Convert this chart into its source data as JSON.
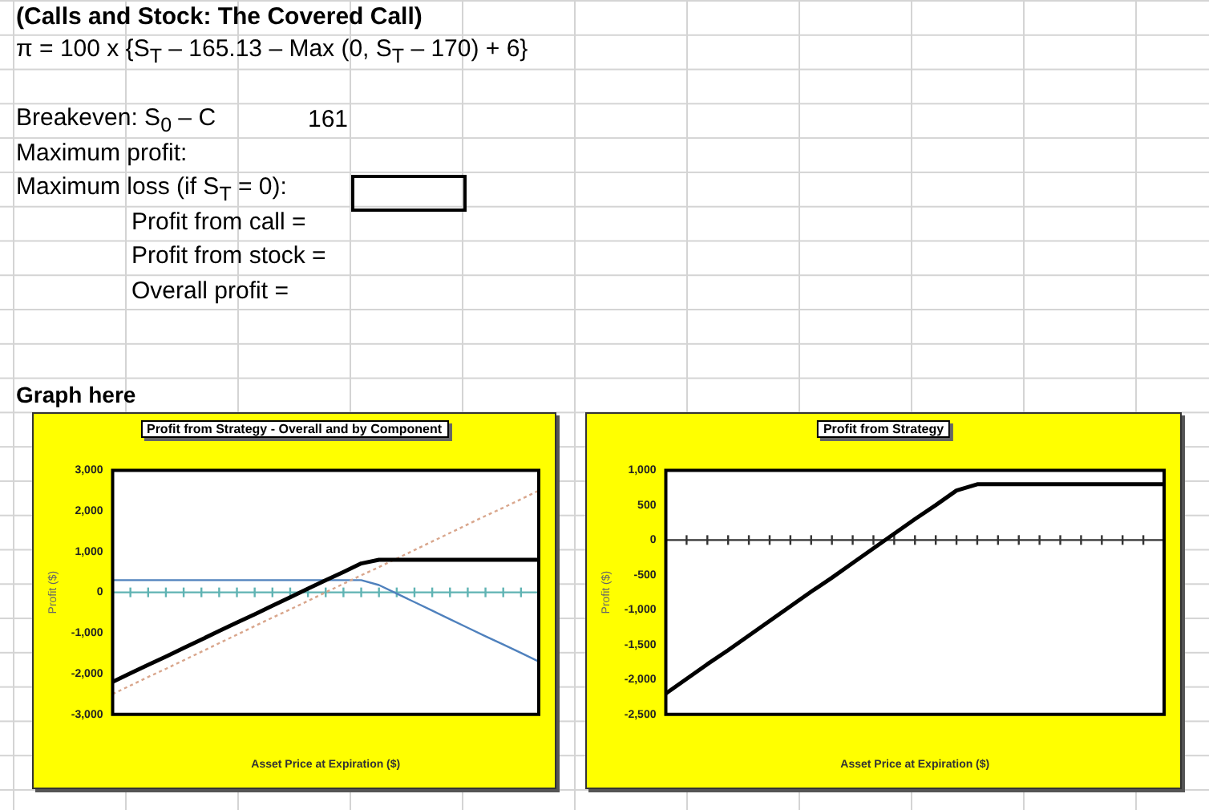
{
  "chart_data": [
    {
      "type": "other",
      "title": "(Calls and Stock: The Covered Call)",
      "annotations": [
        "π = 100 x {S$_{T}$ – 165.13 – Max (0, S$_{T}$ – 170) + 6}",
        "Breakeven: S$_{0}$ – C",
        "161",
        "Maximum profit:",
        "Maximum loss (if S$_{T}$ = 0):",
        "Profit from call =",
        "Profit from stock =",
        "Overall profit =",
        "Graph here"
      ]
    },
    {
      "type": "line",
      "title": "Profit from Strategy - Overall and by Component",
      "xlabel": "Asset Price at Expiration ($)",
      "ylabel": "Profit ($)",
      "categories": [
        null,
        null,
        null,
        null,
        null,
        null,
        null,
        null,
        null,
        null,
        null,
        null,
        null,
        null,
        null,
        null,
        null,
        null,
        null,
        null,
        null,
        null,
        null,
        null,
        null
      ],
      "series": [
        {
          "color": "#000000",
          "line_style": "solid",
          "values": [
            -2200,
            -1990,
            -1780,
            -1580,
            -1370,
            -1160,
            -950,
            -740,
            -540,
            -330,
            -120,
            90,
            300,
            500,
            710,
            800,
            800,
            800,
            800,
            800,
            800,
            800,
            800,
            800,
            800
          ]
        },
        {
          "color": "#d9a68c",
          "line_style": "dotted",
          "values": [
            -2500,
            -2290,
            -2080,
            -1880,
            -1670,
            -1460,
            -1250,
            -1040,
            -830,
            -620,
            -420,
            -210,
            0,
            210,
            420,
            620,
            830,
            1040,
            1250,
            1460,
            1670,
            1880,
            2080,
            2290,
            2500
          ]
        },
        {
          "color": "#4f81bd",
          "line_style": "solid",
          "values": [
            300,
            300,
            300,
            300,
            300,
            300,
            300,
            300,
            300,
            300,
            300,
            300,
            300,
            300,
            300,
            180,
            -30,
            -240,
            -450,
            -660,
            -870,
            -1080,
            -1280,
            -1490,
            -1700
          ]
        }
      ],
      "ylim": [
        -3000,
        3000
      ],
      "yticks": [
        {
          "value": -3000,
          "label": "-3,000"
        },
        {
          "value": -2000,
          "label": "-2,000"
        },
        {
          "value": -1000,
          "label": "-1,000"
        },
        0,
        {
          "value": 1000,
          "label": "1,000"
        },
        {
          "value": 2000,
          "label": "2,000"
        },
        {
          "value": 3000,
          "label": "3,000"
        }
      ],
      "ref_lines": [
        {
          "axis": "y",
          "value": 0,
          "color": "#5fb3b3"
        }
      ],
      "grid": false,
      "legend": false,
      "marker": "none"
    },
    {
      "type": "line",
      "title": "Profit from Strategy",
      "xlabel": "Asset Price at Expiration ($)",
      "ylabel": "Profit ($)",
      "categories": [
        null,
        null,
        null,
        null,
        null,
        null,
        null,
        null,
        null,
        null,
        null,
        null,
        null,
        null,
        null,
        null,
        null,
        null,
        null,
        null,
        null,
        null,
        null,
        null,
        null
      ],
      "series": [
        {
          "color": "#000000",
          "line_style": "solid",
          "values": [
            -2200,
            -1990,
            -1780,
            -1580,
            -1370,
            -1160,
            -950,
            -740,
            -540,
            -330,
            -120,
            90,
            300,
            500,
            710,
            800,
            800,
            800,
            800,
            800,
            800,
            800,
            800,
            800,
            800
          ]
        }
      ],
      "ylim": [
        -2500,
        1000
      ],
      "yticks": [
        {
          "value": -2500,
          "label": "-2,500"
        },
        {
          "value": -2000,
          "label": "-2,000"
        },
        {
          "value": -1500,
          "label": "-1,500"
        },
        {
          "value": -1000,
          "label": "-1,000"
        },
        -500,
        0,
        500,
        {
          "value": 1000,
          "label": "1,000"
        }
      ],
      "ref_lines": [
        {
          "axis": "y",
          "value": 0,
          "color": "#333333"
        }
      ],
      "grid": false,
      "legend": false,
      "marker": "none"
    }
  ]
}
